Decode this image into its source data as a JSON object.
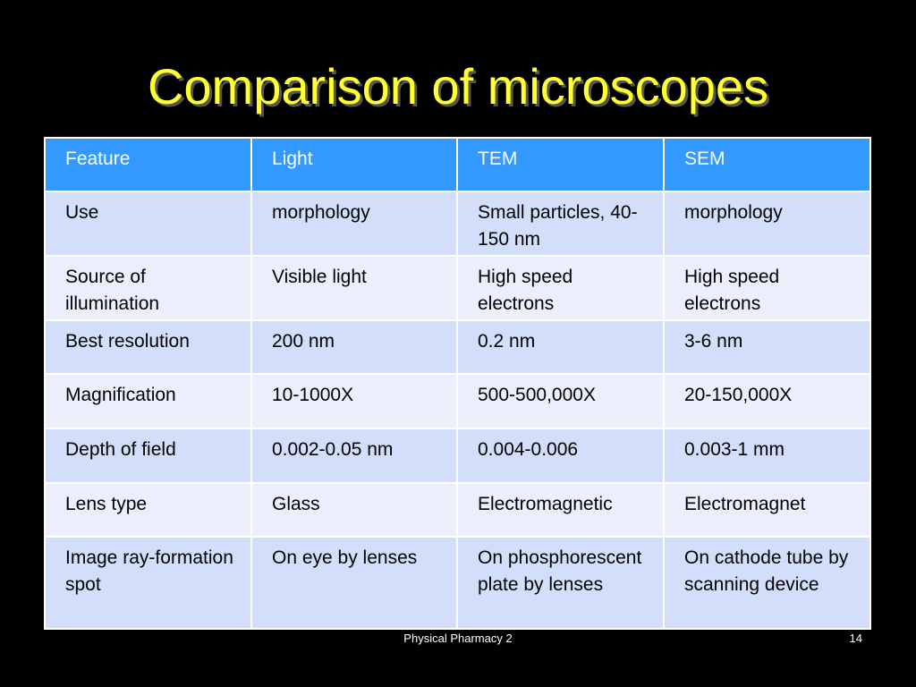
{
  "slide": {
    "title": "Comparison of microscopes",
    "footer": "Physical Pharmacy 2",
    "page_number": "14"
  },
  "table": {
    "headers": [
      "Feature",
      "Light",
      "TEM",
      "SEM"
    ],
    "rows": [
      [
        "Use",
        "morphology",
        "Small particles, 40-150 nm",
        "morphology"
      ],
      [
        "Source of illumination",
        "Visible light",
        "High speed electrons",
        "High speed electrons"
      ],
      [
        "Best resolution",
        "200 nm",
        "0.2 nm",
        "3-6 nm"
      ],
      [
        "Magnification",
        "10-1000X",
        "500-500,000X",
        "20-150,000X"
      ],
      [
        "Depth of field",
        "0.002-0.05 nm",
        "0.004-0.006",
        "0.003-1 mm"
      ],
      [
        "Lens type",
        "Glass",
        "Electromagnetic",
        "Electromagnet"
      ],
      [
        "Image ray-formation spot",
        "On eye by lenses",
        "On phosphorescent plate by lenses",
        "On cathode tube by scanning device"
      ]
    ]
  },
  "colors": {
    "background": "#000000",
    "title": "#ffff33",
    "header_fill": "#3399ff",
    "row_band_dark": "#d3defa",
    "row_band_light": "#eaeffb"
  }
}
